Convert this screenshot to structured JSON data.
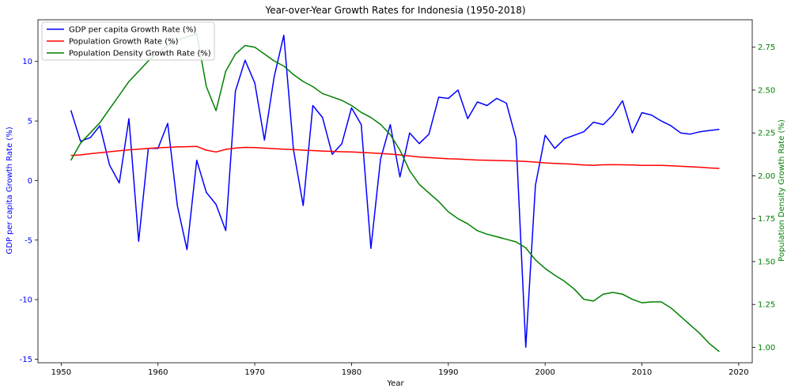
{
  "chart_data": {
    "type": "line",
    "title": "Year-over-Year Growth Rates for Indonesia (1950-2018)",
    "xlabel": "Year",
    "ylabel_left": "GDP per capita Growth Rate (%)",
    "ylabel_right": "Population Density Growth Rate (%)",
    "xlim": [
      1947.6,
      2021.4
    ],
    "ylim_left": [
      -15.3,
      13.5
    ],
    "ylim_right": [
      0.91,
      2.91
    ],
    "xticks": [
      1950,
      1960,
      1970,
      1980,
      1990,
      2000,
      2010,
      2020
    ],
    "yticks_left": [
      -15,
      -10,
      -5,
      0,
      5,
      10
    ],
    "yticks_right": [
      1.0,
      1.25,
      1.5,
      1.75,
      2.0,
      2.25,
      2.5,
      2.75
    ],
    "ytick_labels_right": [
      "1.00",
      "1.25",
      "1.50",
      "1.75",
      "2.00",
      "2.25",
      "2.50",
      "2.75"
    ],
    "legend_position": "top-left",
    "colors": {
      "gdp": "#0000ff",
      "population": "#ff0000",
      "density": "#008000",
      "left_axis": "#0000ff",
      "right_axis": "#008000"
    },
    "x": [
      1951,
      1952,
      1953,
      1954,
      1955,
      1956,
      1957,
      1958,
      1959,
      1960,
      1961,
      1962,
      1963,
      1964,
      1965,
      1966,
      1967,
      1968,
      1969,
      1970,
      1971,
      1972,
      1973,
      1974,
      1975,
      1976,
      1977,
      1978,
      1979,
      1980,
      1981,
      1982,
      1983,
      1984,
      1985,
      1986,
      1987,
      1988,
      1989,
      1990,
      1991,
      1992,
      1993,
      1994,
      1995,
      1996,
      1997,
      1998,
      1999,
      2000,
      2001,
      2002,
      2003,
      2004,
      2005,
      2006,
      2007,
      2008,
      2009,
      2010,
      2011,
      2012,
      2013,
      2014,
      2015,
      2016,
      2017,
      2018
    ],
    "series": [
      {
        "name": "GDP per capita Growth Rate (%)",
        "axis": "left",
        "color": "#0000ff",
        "values": [
          5.9,
          3.3,
          3.6,
          4.6,
          1.3,
          -0.2,
          5.2,
          -5.1,
          2.7,
          2.7,
          4.8,
          -2.1,
          -5.8,
          1.7,
          -1.0,
          -2.0,
          -4.2,
          7.5,
          10.1,
          8.2,
          3.4,
          8.7,
          12.2,
          2.6,
          -2.1,
          6.3,
          5.3,
          2.2,
          3.1,
          6.1,
          4.7,
          -5.7,
          1.8,
          4.7,
          0.3,
          4.0,
          3.1,
          3.9,
          7.0,
          6.9,
          7.6,
          5.2,
          6.6,
          6.3,
          6.9,
          6.5,
          3.5,
          -14.0,
          -0.4,
          3.8,
          2.7,
          3.5,
          3.8,
          4.1,
          4.9,
          4.7,
          5.5,
          6.7,
          4.0,
          5.7,
          5.5,
          5.0,
          4.6,
          4.0,
          3.9,
          4.1,
          4.2,
          4.3
        ]
      },
      {
        "name": "Population Growth Rate (%)",
        "axis": "left",
        "color": "#ff0000",
        "values": [
          2.1,
          2.15,
          2.25,
          2.33,
          2.42,
          2.5,
          2.58,
          2.64,
          2.7,
          2.75,
          2.78,
          2.82,
          2.84,
          2.86,
          2.55,
          2.4,
          2.62,
          2.72,
          2.78,
          2.76,
          2.72,
          2.68,
          2.64,
          2.6,
          2.55,
          2.52,
          2.48,
          2.45,
          2.42,
          2.4,
          2.36,
          2.32,
          2.28,
          2.22,
          2.15,
          2.06,
          1.98,
          1.93,
          1.88,
          1.83,
          1.8,
          1.76,
          1.72,
          1.7,
          1.68,
          1.66,
          1.64,
          1.6,
          1.55,
          1.48,
          1.44,
          1.4,
          1.36,
          1.3,
          1.28,
          1.32,
          1.33,
          1.32,
          1.3,
          1.27,
          1.27,
          1.27,
          1.24,
          1.2,
          1.16,
          1.12,
          1.06,
          1.02
        ]
      },
      {
        "name": "Population Density Growth Rate (%)",
        "axis": "right",
        "color": "#008000",
        "values": [
          2.09,
          2.19,
          2.25,
          2.31,
          2.39,
          2.47,
          2.55,
          2.61,
          2.67,
          2.72,
          2.76,
          2.79,
          2.81,
          2.83,
          2.52,
          2.38,
          2.61,
          2.71,
          2.76,
          2.75,
          2.71,
          2.67,
          2.64,
          2.59,
          2.55,
          2.52,
          2.48,
          2.46,
          2.44,
          2.41,
          2.37,
          2.34,
          2.3,
          2.24,
          2.15,
          2.03,
          1.95,
          1.9,
          1.85,
          1.79,
          1.75,
          1.72,
          1.68,
          1.66,
          1.645,
          1.63,
          1.615,
          1.58,
          1.51,
          1.46,
          1.42,
          1.385,
          1.34,
          1.28,
          1.27,
          1.31,
          1.32,
          1.31,
          1.28,
          1.26,
          1.265,
          1.265,
          1.23,
          1.18,
          1.13,
          1.08,
          1.02,
          0.975
        ]
      }
    ]
  }
}
